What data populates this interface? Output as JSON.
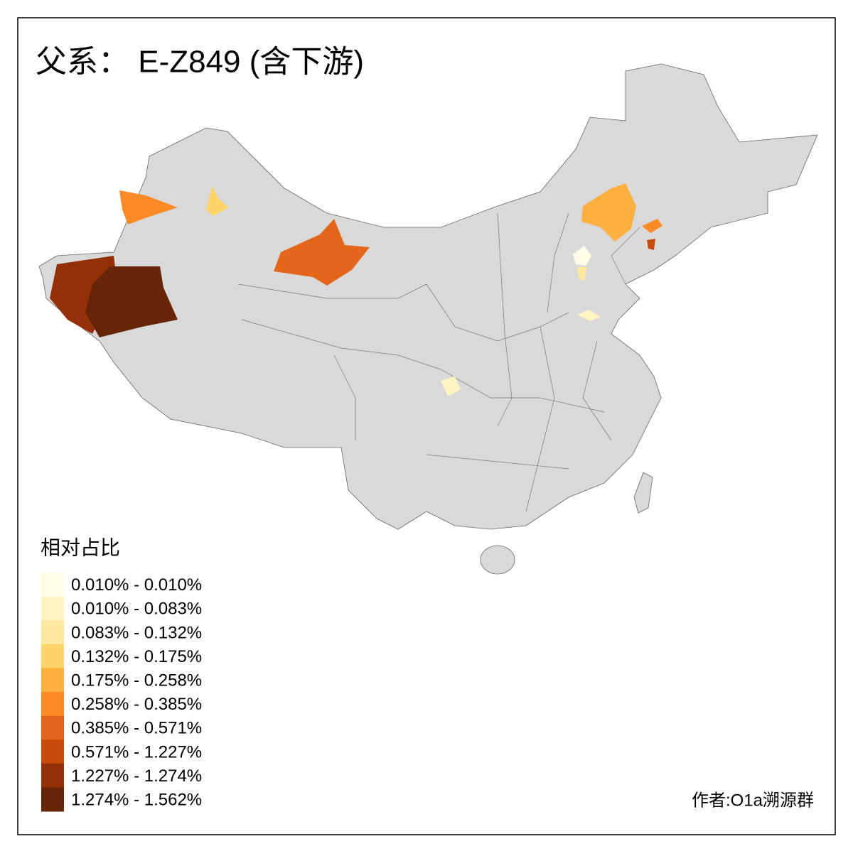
{
  "title": "父系： E-Z849 (含下游)",
  "legend": {
    "title": "相对占比",
    "items": [
      {
        "label": "0.010% - 0.010%",
        "color": "#fffde6"
      },
      {
        "label": "0.010% - 0.083%",
        "color": "#fff5c0"
      },
      {
        "label": "0.083% - 0.132%",
        "color": "#fee8a0"
      },
      {
        "label": "0.132% - 0.175%",
        "color": "#fed46a"
      },
      {
        "label": "0.175% - 0.258%",
        "color": "#feb03f"
      },
      {
        "label": "0.258% - 0.385%",
        "color": "#f98a26"
      },
      {
        "label": "0.385% - 0.571%",
        "color": "#e3661a"
      },
      {
        "label": "0.571% - 1.227%",
        "color": "#c84b0c"
      },
      {
        "label": "1.227% - 1.274%",
        "color": "#93300a"
      },
      {
        "label": "1.274% - 1.562%",
        "color": "#662506"
      }
    ]
  },
  "credit": "作者:O1a溯源群"
}
